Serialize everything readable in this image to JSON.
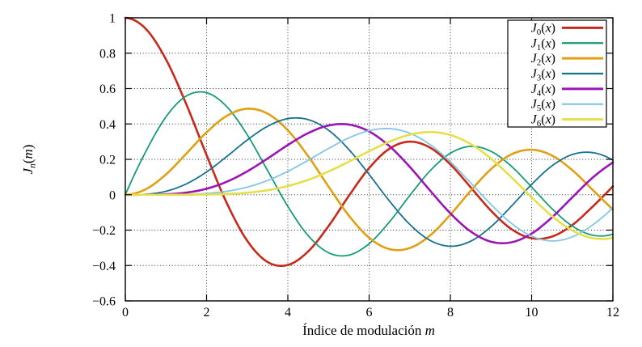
{
  "chart_data": {
    "type": "line",
    "title": "",
    "xlabel": {
      "text": "Índice de modulación",
      "var": "m"
    },
    "ylabel": {
      "sym": "J",
      "sub": "n",
      "open": "(",
      "var": "m",
      "close": ")"
    },
    "xlim": [
      0,
      12
    ],
    "ylim": [
      -0.6,
      1
    ],
    "x_ticks": [
      0,
      2,
      4,
      6,
      8,
      10,
      12
    ],
    "x_tick_labels": [
      "0",
      "2",
      "4",
      "6",
      "8",
      "10",
      "12"
    ],
    "y_ticks": [
      1,
      0.8,
      0.6,
      0.4,
      0.2,
      0,
      -0.2,
      -0.4,
      -0.6
    ],
    "y_tick_labels": [
      "1",
      "0.8",
      "0.6",
      "0.4",
      "0.2",
      "0",
      "-0.2",
      "-0.4",
      "-0.6"
    ],
    "grid": true,
    "grid_style": "dotted-black",
    "legend_position": "top-right",
    "legend_border": true,
    "x_start": 0,
    "x_step": 0.5,
    "series": [
      {
        "sym": "J",
        "sub": "0",
        "var": "x",
        "color": "#c52a1c",
        "width": 2.6,
        "values": [
          1,
          0.9385,
          0.7652,
          0.5118,
          0.2239,
          -0.0484,
          -0.2601,
          -0.3801,
          -0.3971,
          -0.3205,
          -0.1776,
          -0.0068,
          0.1506,
          0.2601,
          0.3001,
          0.2663,
          0.1717,
          0.0419,
          -0.0903,
          -0.1939,
          -0.2459,
          -0.2366,
          -0.1712,
          -0.0677,
          0.0477
        ]
      },
      {
        "sym": "J",
        "sub": "1",
        "var": "x",
        "color": "#169b76",
        "width": 1.8,
        "values": [
          0,
          0.2423,
          0.4401,
          0.5579,
          0.5767,
          0.4971,
          0.3391,
          0.1374,
          -0.066,
          -0.2311,
          -0.3276,
          -0.3414,
          -0.2767,
          -0.1538,
          -0.0047,
          0.1352,
          0.2346,
          0.2731,
          0.2453,
          0.1613,
          0.0435,
          -0.0789,
          -0.1768,
          -0.2284,
          -0.2234
        ]
      },
      {
        "sym": "J",
        "sub": "2",
        "var": "x",
        "color": "#dfa014",
        "width": 2.6,
        "values": [
          0,
          0.0307,
          0.1149,
          0.2321,
          0.3528,
          0.4461,
          0.4861,
          0.4586,
          0.3641,
          0.2178,
          0.0466,
          -0.1173,
          -0.2429,
          -0.3074,
          -0.3014,
          -0.2302,
          -0.113,
          0.0224,
          0.1448,
          0.2279,
          0.2546,
          0.2216,
          0.139,
          0.028,
          -0.0849
        ]
      },
      {
        "sym": "J",
        "sub": "3",
        "var": "x",
        "color": "#17718f",
        "width": 1.8,
        "values": [
          0,
          0.0026,
          0.0196,
          0.061,
          0.1289,
          0.2166,
          0.3091,
          0.3867,
          0.4302,
          0.4247,
          0.3648,
          0.2561,
          0.1148,
          -0.0353,
          -0.1676,
          -0.258,
          -0.2911,
          -0.2626,
          -0.1809,
          -0.0653,
          0.0584,
          0.1633,
          0.2273,
          0.2381,
          0.1951
        ]
      },
      {
        "sym": "J",
        "sub": "4",
        "var": "x",
        "color": "#9a15b4",
        "width": 2.6,
        "values": [
          0,
          0.0002,
          0.0025,
          0.0118,
          0.034,
          0.0738,
          0.132,
          0.2044,
          0.2811,
          0.3484,
          0.3912,
          0.3967,
          0.3576,
          0.2747,
          0.1578,
          0.0238,
          -0.1054,
          -0.2078,
          -0.2655,
          -0.2691,
          -0.2196,
          -0.1283,
          -0.015,
          0.0962,
          0.1825
        ]
      },
      {
        "sym": "J",
        "sub": "5",
        "var": "x",
        "color": "#85c6e6",
        "width": 1.8,
        "values": [
          0,
          0.0,
          0.0002,
          0.0018,
          0.007,
          0.0195,
          0.043,
          0.0804,
          0.1321,
          0.1947,
          0.2611,
          0.3209,
          0.3621,
          0.3735,
          0.3479,
          0.2834,
          0.1858,
          0.067,
          -0.055,
          -0.1613,
          -0.2341,
          -0.2611,
          -0.2383,
          -0.1712,
          -0.0735
        ]
      },
      {
        "sym": "J",
        "sub": "6",
        "var": "x",
        "color": "#e5e04a",
        "width": 2.6,
        "values": [
          0,
          0.0,
          0.0,
          0.0004,
          0.0012,
          0.0042,
          0.0114,
          0.0254,
          0.0491,
          0.0843,
          0.131,
          0.1868,
          0.2458,
          0.2999,
          0.3392,
          0.3541,
          0.3376,
          0.2866,
          0.2043,
          0.0993,
          -0.0145,
          -0.1204,
          -0.2016,
          -0.2451,
          -0.2437
        ]
      }
    ],
    "frame_color": "#000000",
    "background_color": "#ffffff"
  }
}
